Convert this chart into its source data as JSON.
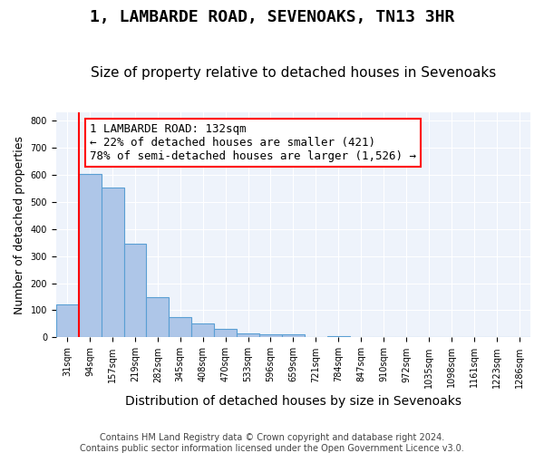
{
  "title": "1, LAMBARDE ROAD, SEVENOAKS, TN13 3HR",
  "subtitle": "Size of property relative to detached houses in Sevenoaks",
  "xlabel": "Distribution of detached houses by size in Sevenoaks",
  "ylabel": "Number of detached properties",
  "bins": [
    "31sqm",
    "94sqm",
    "157sqm",
    "219sqm",
    "282sqm",
    "345sqm",
    "408sqm",
    "470sqm",
    "533sqm",
    "596sqm",
    "659sqm",
    "721sqm",
    "784sqm",
    "847sqm",
    "910sqm",
    "972sqm",
    "1035sqm",
    "1098sqm",
    "1161sqm",
    "1223sqm",
    "1286sqm"
  ],
  "bar_values": [
    122,
    603,
    553,
    347,
    148,
    75,
    53,
    30,
    15,
    10,
    10,
    0,
    5,
    0,
    0,
    0,
    0,
    0,
    0,
    0,
    0
  ],
  "bar_color": "#aec6e8",
  "bar_edge_color": "#5a9fd4",
  "vline_position": 0.5,
  "vline_color": "red",
  "annotation_text": "1 LAMBARDE ROAD: 132sqm\n← 22% of detached houses are smaller (421)\n78% of semi-detached houses are larger (1,526) →",
  "annotation_box_color": "white",
  "annotation_box_edge_color": "red",
  "ylim": [
    0,
    830
  ],
  "yticks": [
    0,
    100,
    200,
    300,
    400,
    500,
    600,
    700,
    800
  ],
  "background_color": "#eef3fb",
  "grid_color": "white",
  "footer": "Contains HM Land Registry data © Crown copyright and database right 2024.\nContains public sector information licensed under the Open Government Licence v3.0.",
  "title_fontsize": 13,
  "subtitle_fontsize": 11,
  "xlabel_fontsize": 10,
  "ylabel_fontsize": 9,
  "tick_fontsize": 7,
  "annotation_fontsize": 9
}
